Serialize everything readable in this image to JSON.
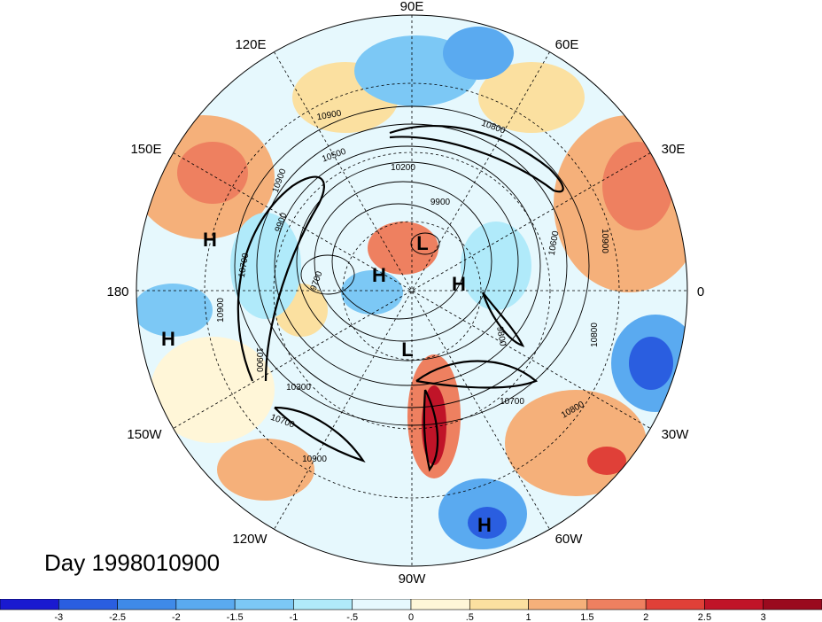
{
  "title": "Day 1998010900",
  "longitude_labels": {
    "90E": "90E",
    "60E": "60E",
    "30E": "30E",
    "0": "0",
    "30W": "30W",
    "60W": "60W",
    "90W": "90W",
    "120W": "120W",
    "150W": "150W",
    "180": "180",
    "150E": "150E",
    "120E": "120E"
  },
  "pressure_centers": [
    "H",
    "H",
    "H",
    "H",
    "H",
    "L",
    "L"
  ],
  "contour_labels": [
    "10900",
    "10800",
    "10500",
    "10200",
    "9900",
    "9700",
    "10700",
    "10900",
    "10300",
    "10900",
    "10700",
    "10800",
    "9800",
    "10600",
    "10900",
    "10800",
    "9900",
    "10900",
    "10700",
    "10900"
  ],
  "colorbar": {
    "tick_labels": [
      "-3",
      "-2.5",
      "-2",
      "-1.5",
      "-1",
      "-.5",
      "0",
      ".5",
      "1",
      "1.5",
      "2",
      "2.5",
      "3"
    ],
    "colors": [
      "#1a1ad0",
      "#2a5ee0",
      "#3f8ae8",
      "#5aaaf0",
      "#7cc8f5",
      "#b0eafa",
      "#e6f8fd",
      "#fff6d8",
      "#fbe0a0",
      "#f5b07a",
      "#ee8060",
      "#e04038",
      "#c01428",
      "#9a0a1e"
    ]
  },
  "colors": {
    "background": "#ffffff",
    "ocean_base": "#e6f8fd",
    "contour": "#000000"
  }
}
